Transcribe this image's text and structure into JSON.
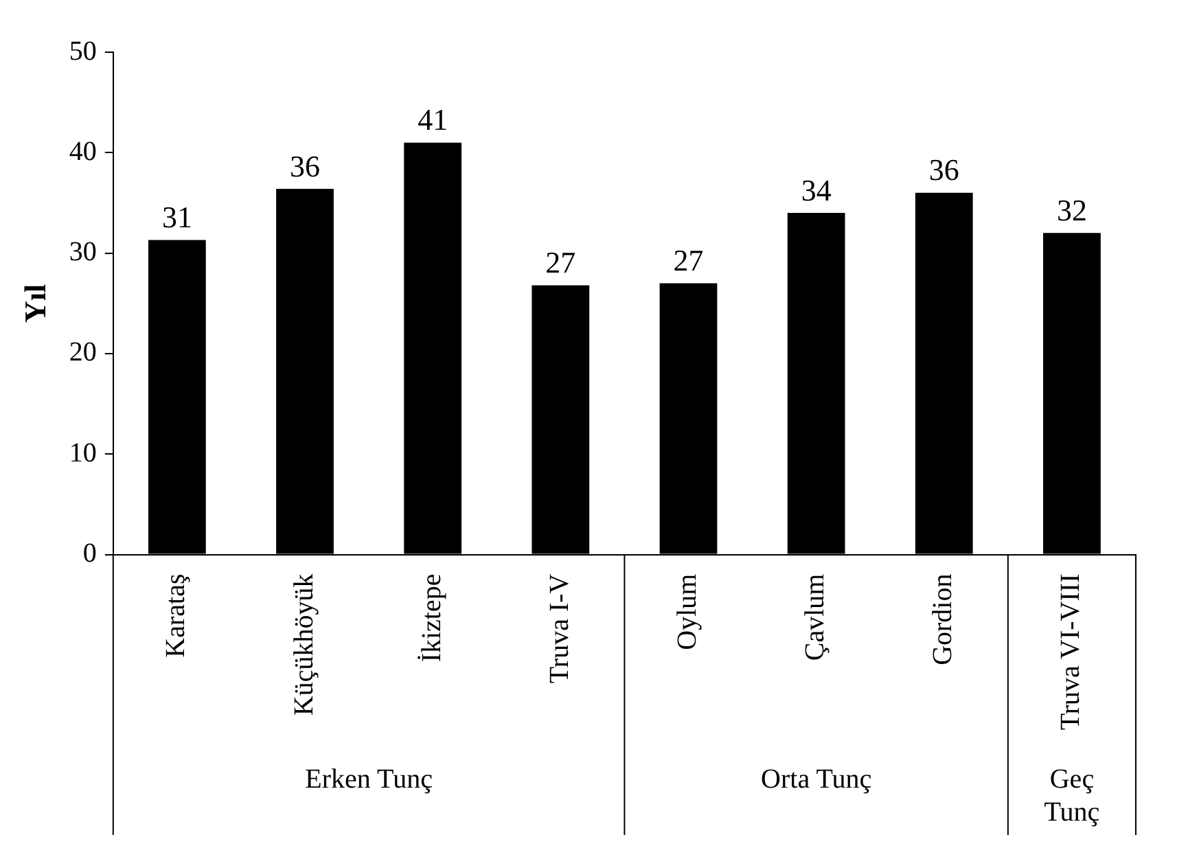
{
  "chart_data": {
    "type": "bar",
    "ylabel": "Yıl",
    "categories": [
      "Karataş",
      "Küçükhöyük",
      "İkiztepe",
      "Truva I-V",
      "Oylum",
      "Çavlum",
      "Gordion",
      "Truva VI-VIII"
    ],
    "values": [
      31.3,
      36.4,
      41,
      26.8,
      27,
      34,
      36,
      32
    ],
    "value_labels": [
      "31",
      "36",
      "41",
      "27",
      "27",
      "34",
      "36",
      "32"
    ],
    "color": "#000000",
    "ylim": [
      0,
      50
    ],
    "yticks": [
      0,
      10,
      20,
      30,
      40,
      50
    ],
    "grid": false,
    "legend": false,
    "annotations": [
      "Erken Tunç",
      "Orta Tunç",
      "Geç Tunç"
    ]
  }
}
